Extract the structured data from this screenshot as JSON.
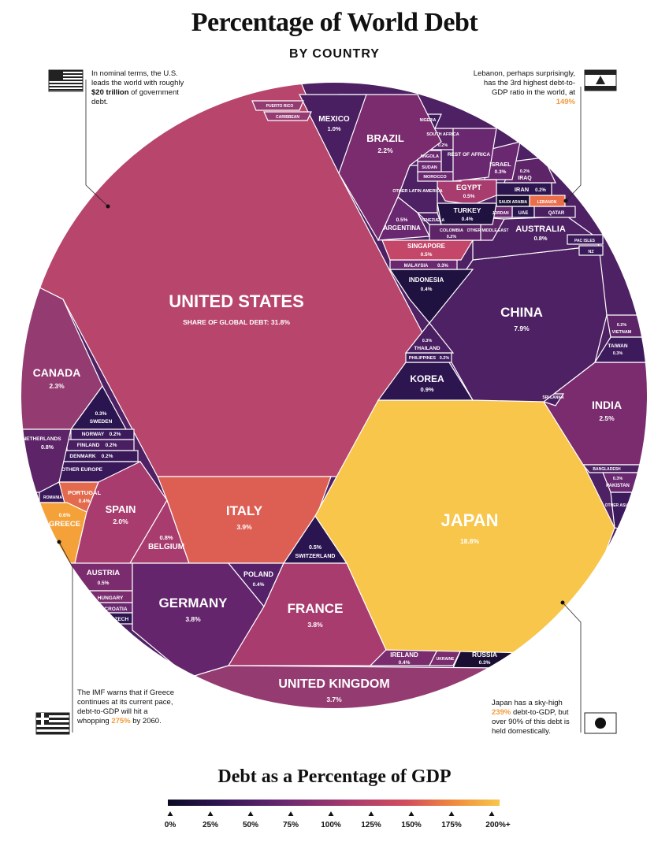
{
  "header": {
    "title": "Percentage of World Debt",
    "subtitle": "BY COUNTRY"
  },
  "notes": {
    "us": {
      "pre": "In nominal terms, the U.S. leads the world with roughly ",
      "bold": "$20 trillion",
      "post": " of government debt."
    },
    "lebanon": {
      "pre": "Lebanon, perhaps surprisingly, has the 3rd highest debt-to-GDP ratio in the world, at ",
      "highlight": "149%"
    },
    "greece": {
      "pre": "The IMF warns that if Greece continues at its current pace, debt-to-GDP will hit a whopping ",
      "highlight": "275%",
      "post": " by 2060."
    },
    "japan": {
      "pre": "Japan has a sky-high ",
      "highlight": "239%",
      "post": " debt-to-GDP, but over 90% of this debt is held domestically."
    }
  },
  "colors": {
    "scale": [
      "#0d0a25",
      "#2d1550",
      "#552266",
      "#7a2c6e",
      "#a83c6e",
      "#d24e5c",
      "#ea6e4a",
      "#f29a3a",
      "#f7c64a"
    ]
  },
  "countries": [
    {
      "name": "UNITED STATES",
      "share": "SHARE OF GLOBAL DEBT: 31.8%",
      "debt_to_gdp": 105
    },
    {
      "name": "JAPAN",
      "share": "18.8%",
      "debt_to_gdp": 239
    },
    {
      "name": "CHINA",
      "share": "7.9%",
      "debt_to_gdp": 47
    },
    {
      "name": "ITALY",
      "share": "3.9%",
      "debt_to_gdp": 132
    },
    {
      "name": "GERMANY",
      "share": "3.8%",
      "debt_to_gdp": 64
    },
    {
      "name": "FRANCE",
      "share": "3.8%",
      "debt_to_gdp": 97
    },
    {
      "name": "UNITED KINGDOM",
      "share": "3.7%",
      "debt_to_gdp": 87
    },
    {
      "name": "INDIA",
      "share": "2.5%",
      "debt_to_gdp": 68
    },
    {
      "name": "CANADA",
      "share": "2.3%",
      "debt_to_gdp": 90
    },
    {
      "name": "BRAZIL",
      "share": "2.2%",
      "debt_to_gdp": 84
    },
    {
      "name": "SPAIN",
      "share": "2.0%",
      "debt_to_gdp": 98
    },
    {
      "name": "MEXICO",
      "share": "1.0%",
      "debt_to_gdp": 54
    },
    {
      "name": "KOREA",
      "share": "0.9%",
      "debt_to_gdp": 40
    },
    {
      "name": "AUSTRALIA",
      "share": "0.8%",
      "debt_to_gdp": 41
    },
    {
      "name": "BELGIUM",
      "share": "0.8%",
      "debt_to_gdp": 103
    },
    {
      "name": "NETHERLANDS",
      "share": "0.8%",
      "debt_to_gdp": 57
    },
    {
      "name": "GREECE",
      "share": "0.6%",
      "debt_to_gdp": 180
    },
    {
      "name": "EGYPT",
      "share": "0.5%",
      "debt_to_gdp": 103
    },
    {
      "name": "ARGENTINA",
      "share": "0.5%",
      "debt_to_gdp": 53
    },
    {
      "name": "SINGAPORE",
      "share": "0.5%",
      "debt_to_gdp": 110
    },
    {
      "name": "SWITZERLAND",
      "share": "0.5%",
      "debt_to_gdp": 42
    },
    {
      "name": "AUSTRIA",
      "share": "0.5%",
      "debt_to_gdp": 78
    },
    {
      "name": "POLAND",
      "share": "0.4%",
      "debt_to_gdp": 51
    },
    {
      "name": "PORTUGAL",
      "share": "0.4%",
      "debt_to_gdp": 125
    },
    {
      "name": "TURKEY",
      "share": "0.4%",
      "debt_to_gdp": 28
    },
    {
      "name": "INDONESIA",
      "share": "0.4%",
      "debt_to_gdp": 29
    },
    {
      "name": "IRELAND",
      "share": "0.4%",
      "debt_to_gdp": 69
    },
    {
      "name": "RUSSIA",
      "share": "0.3%",
      "debt_to_gdp": 17
    },
    {
      "name": "ISRAEL",
      "share": "0.3%",
      "debt_to_gdp": 60
    },
    {
      "name": "SWEDEN",
      "share": "0.3%",
      "debt_to_gdp": 39
    },
    {
      "name": "THAILAND",
      "share": "0.3%",
      "debt_to_gdp": 41
    },
    {
      "name": "MALAYSIA",
      "share": "0.3%",
      "debt_to_gdp": 55
    },
    {
      "name": "TAIWAN",
      "share": "0.3%",
      "debt_to_gdp": 35
    },
    {
      "name": "PAKISTAN",
      "share": "0.3%",
      "debt_to_gdp": 67
    },
    {
      "name": "IRAN",
      "share": "0.2%",
      "debt_to_gdp": 40
    },
    {
      "name": "IRAQ",
      "share": "0.2%",
      "debt_to_gdp": 59
    },
    {
      "name": "VIETNAM",
      "share": "0.2%",
      "debt_to_gdp": 58
    },
    {
      "name": "SOUTH AFRICA",
      "share": "0.2%",
      "debt_to_gdp": 53
    },
    {
      "name": "COLOMBIA",
      "share": "0.2%",
      "debt_to_gdp": 50
    },
    {
      "name": "PHILIPPINES",
      "share": "0.2%",
      "debt_to_gdp": 39
    },
    {
      "name": "NORWAY",
      "share": "0.2%",
      "debt_to_gdp": 36
    },
    {
      "name": "FINLAND",
      "share": "0.2%",
      "debt_to_gdp": 61
    },
    {
      "name": "DENMARK",
      "share": "0.2%",
      "debt_to_gdp": 36
    },
    {
      "name": "PUERTO RICO"
    },
    {
      "name": "CARIBBEAN"
    },
    {
      "name": "NIGERIA"
    },
    {
      "name": "ANGOLA"
    },
    {
      "name": "SUDAN"
    },
    {
      "name": "MOROCCO"
    },
    {
      "name": "REST OF AFRICA"
    },
    {
      "name": "OTHER LATIN AMERICA"
    },
    {
      "name": "VENEZUELA"
    },
    {
      "name": "OTHER MIDDLE EAST"
    },
    {
      "name": "SAUDI ARABIA"
    },
    {
      "name": "LEBANON"
    },
    {
      "name": "JORDAN"
    },
    {
      "name": "UAE"
    },
    {
      "name": "QATAR"
    },
    {
      "name": "PAC ISLES"
    },
    {
      "name": "NZ"
    },
    {
      "name": "SRI LANKA"
    },
    {
      "name": "BANGLADESH"
    },
    {
      "name": "OTHER ASIA"
    },
    {
      "name": "OTHER EUROPE"
    },
    {
      "name": "ROMANIA"
    },
    {
      "name": "HUNGARY"
    },
    {
      "name": "CROATIA"
    },
    {
      "name": "CZECH"
    },
    {
      "name": "UKRAINE"
    }
  ],
  "legend": {
    "title": "Debt as a Percentage of GDP",
    "ticks": [
      "0%",
      "25%",
      "50%",
      "75%",
      "100%",
      "125%",
      "150%",
      "175%",
      "200%+"
    ]
  }
}
